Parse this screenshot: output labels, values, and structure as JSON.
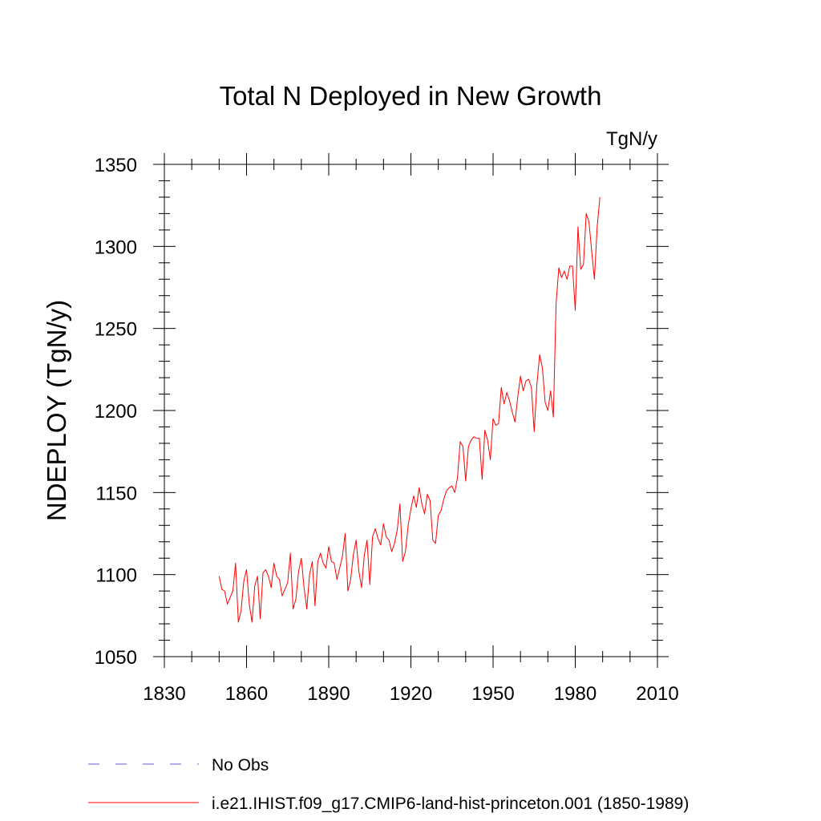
{
  "chart_data": {
    "type": "line",
    "title": "Total N Deployed in New Growth",
    "units_label": "TgN/y",
    "ylabel": "NDEPLOY  (TgN/y)",
    "xlabel": "",
    "xlim": [
      1830,
      2010
    ],
    "ylim": [
      1050,
      1350
    ],
    "x_ticks": [
      1830,
      1860,
      1890,
      1920,
      1950,
      1980,
      2010
    ],
    "y_ticks": [
      1050,
      1100,
      1150,
      1200,
      1250,
      1300,
      1350
    ],
    "grid": false,
    "legend": {
      "placement": "bottom",
      "entries": [
        {
          "name": "No Obs",
          "color": "#6a5acd",
          "style": "dashed"
        },
        {
          "name": "i.e21.IHIST.f09_g17.CMIP6-land-hist-princeton.001 (1850-1989)",
          "color": "#ff0000",
          "style": "solid"
        }
      ]
    },
    "series": [
      {
        "name": "i.e21.IHIST.f09_g17.CMIP6-land-hist-princeton.001 (1850-1989)",
        "color": "#ff0000",
        "x": [
          1850,
          1851,
          1852,
          1853,
          1854,
          1855,
          1856,
          1857,
          1858,
          1859,
          1860,
          1861,
          1862,
          1863,
          1864,
          1865,
          1866,
          1867,
          1868,
          1869,
          1870,
          1871,
          1872,
          1873,
          1874,
          1875,
          1876,
          1877,
          1878,
          1879,
          1880,
          1881,
          1882,
          1883,
          1884,
          1885,
          1886,
          1887,
          1888,
          1889,
          1890,
          1891,
          1892,
          1893,
          1894,
          1895,
          1896,
          1897,
          1898,
          1899,
          1900,
          1901,
          1902,
          1903,
          1904,
          1905,
          1906,
          1907,
          1908,
          1909,
          1910,
          1911,
          1912,
          1913,
          1914,
          1915,
          1916,
          1917,
          1918,
          1919,
          1920,
          1921,
          1922,
          1923,
          1924,
          1925,
          1926,
          1927,
          1928,
          1929,
          1930,
          1931,
          1932,
          1933,
          1934,
          1935,
          1936,
          1937,
          1938,
          1939,
          1940,
          1941,
          1942,
          1943,
          1944,
          1945,
          1946,
          1947,
          1948,
          1949,
          1950,
          1951,
          1952,
          1953,
          1954,
          1955,
          1956,
          1957,
          1958,
          1959,
          1960,
          1961,
          1962,
          1963,
          1964,
          1965,
          1966,
          1967,
          1968,
          1969,
          1970,
          1971,
          1972,
          1973,
          1974,
          1975,
          1976,
          1977,
          1978,
          1979,
          1980,
          1981,
          1982,
          1983,
          1984,
          1985,
          1986,
          1987,
          1988,
          1989
        ],
        "values": [
          1099,
          1091,
          1090,
          1082,
          1086,
          1090,
          1107,
          1071,
          1078,
          1096,
          1103,
          1082,
          1071,
          1093,
          1099,
          1073,
          1101,
          1103,
          1099,
          1092,
          1107,
          1099,
          1097,
          1087,
          1091,
          1095,
          1113,
          1079,
          1085,
          1102,
          1110,
          1092,
          1079,
          1100,
          1108,
          1081,
          1108,
          1113,
          1107,
          1104,
          1117,
          1108,
          1107,
          1097,
          1104,
          1111,
          1125,
          1090,
          1097,
          1112,
          1121,
          1102,
          1092,
          1112,
          1121,
          1094,
          1123,
          1128,
          1122,
          1118,
          1131,
          1123,
          1121,
          1114,
          1119,
          1127,
          1143,
          1108,
          1114,
          1130,
          1140,
          1148,
          1141,
          1153,
          1143,
          1137,
          1149,
          1145,
          1121,
          1119,
          1136,
          1139,
          1146,
          1151,
          1153,
          1154,
          1150,
          1159,
          1181,
          1178,
          1157,
          1178,
          1182,
          1184,
          1183,
          1183,
          1158,
          1188,
          1182,
          1170,
          1195,
          1191,
          1192,
          1214,
          1204,
          1211,
          1206,
          1199,
          1193,
          1208,
          1221,
          1212,
          1218,
          1219,
          1214,
          1187,
          1216,
          1234,
          1226,
          1205,
          1200,
          1212,
          1196,
          1265,
          1287,
          1281,
          1285,
          1280,
          1288,
          1288,
          1261,
          1312,
          1286,
          1289,
          1320,
          1315,
          1297,
          1280,
          1312,
          1330
        ]
      }
    ]
  }
}
